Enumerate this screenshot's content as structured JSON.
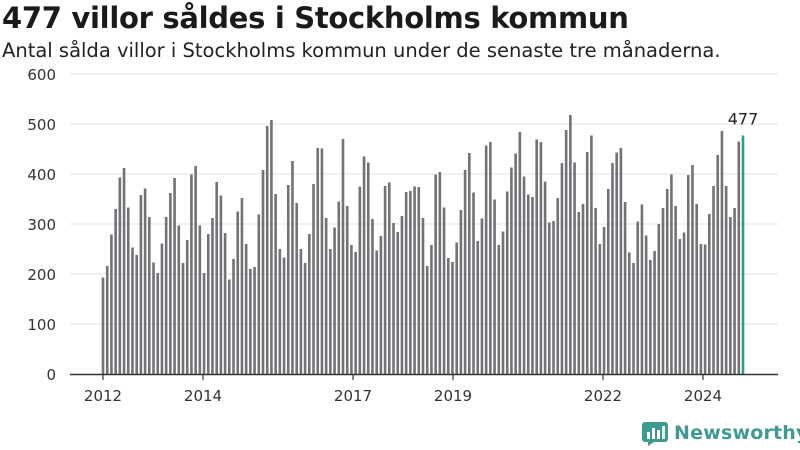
{
  "header": {
    "title": "477 villor såldes i Stockholms kommun",
    "subtitle": "Antal sålda villor i Stockholms kommun under de senaste tre månaderna."
  },
  "brand": {
    "name": "Newsworthy",
    "color": "#3f9a92"
  },
  "colors": {
    "bar": "#737276",
    "highlight": "#2a9d8f",
    "axis": "#333333",
    "grid": "#e3e3e3"
  },
  "chart_data": {
    "type": "bar",
    "title": "477 villor såldes i Stockholms kommun",
    "subtitle": "Antal sålda villor i Stockholms kommun under de senaste tre månaderna.",
    "xlabel": "",
    "ylabel": "",
    "ylim": [
      0,
      600
    ],
    "yticks": [
      0,
      100,
      200,
      300,
      400,
      500,
      600
    ],
    "xtick_labels": [
      "2012",
      "2014",
      "2017",
      "2019",
      "2022",
      "2024"
    ],
    "grid": true,
    "legend": "none",
    "annotation": {
      "text": "477",
      "value": 477
    },
    "values": [
      193,
      216,
      279,
      330,
      393,
      412,
      333,
      253,
      238,
      358,
      371,
      314,
      223,
      202,
      261,
      314,
      362,
      392,
      297,
      222,
      268,
      399,
      416,
      297,
      202,
      280,
      312,
      384,
      357,
      282,
      189,
      230,
      325,
      352,
      260,
      210,
      214,
      319,
      408,
      496,
      508,
      360,
      250,
      233,
      378,
      426,
      342,
      250,
      222,
      280,
      380,
      452,
      451,
      312,
      250,
      293,
      345,
      470,
      336,
      258,
      244,
      375,
      435,
      423,
      310,
      247,
      276,
      376,
      383,
      302,
      284,
      316,
      364,
      366,
      375,
      374,
      312,
      216,
      258,
      399,
      404,
      333,
      232,
      224,
      263,
      328,
      408,
      442,
      363,
      266,
      311,
      457,
      464,
      349,
      258,
      285,
      365,
      413,
      441,
      484,
      395,
      359,
      354,
      469,
      464,
      385,
      303,
      306,
      352,
      422,
      488,
      518,
      423,
      324,
      340,
      444,
      477,
      332,
      260,
      294,
      370,
      422,
      443,
      452,
      344,
      243,
      222,
      305,
      339,
      277,
      228,
      246,
      300,
      332,
      370,
      399,
      336,
      270,
      283,
      398,
      418,
      340,
      260,
      259,
      320,
      376,
      438,
      486,
      376,
      314,
      332,
      465,
      477
    ]
  }
}
